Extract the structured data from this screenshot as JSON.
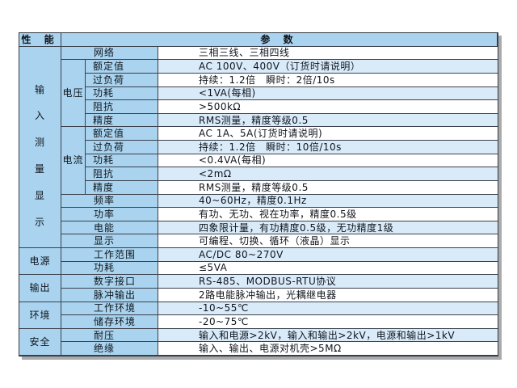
{
  "colors": {
    "header_cell_blue": "#a9d3ee",
    "row_alt_blue": "#d9eaf9",
    "row_plain": "#ffffff",
    "grid_line": "#3b424d",
    "table_shadow": "#a8aaac",
    "text": "#10151c"
  },
  "header": {
    "property_label": "性 能",
    "parameter_label": "参 数"
  },
  "groups": {
    "input": {
      "chars": [
        "输",
        "入",
        "测",
        "量",
        "显",
        "示"
      ]
    },
    "voltage": "电压",
    "current": "电流",
    "power": "电源",
    "output": "输出",
    "environment": "环境",
    "safety": "安全"
  },
  "rows": [
    {
      "param": "网络",
      "value": "三相三线、三相四线"
    },
    {
      "param": "额定值",
      "value": "AC 100V、400V（订货时请说明）"
    },
    {
      "param": "过负荷",
      "value": "持续：1.2倍　瞬时：2倍/10s"
    },
    {
      "param": "功耗",
      "value": "<1VA(每相)"
    },
    {
      "param": "阻抗",
      "value": ">500kΩ"
    },
    {
      "param": "精度",
      "value": "RMS测量，精度等级0.5"
    },
    {
      "param": "额定值",
      "value": "AC 1A、5A(订货时请说明)"
    },
    {
      "param": "过负荷",
      "value": "持续：1.2倍　瞬时：10倍/10s"
    },
    {
      "param": "功耗",
      "value": "<0.4VA(每相)"
    },
    {
      "param": "阻抗",
      "value": "<2mΩ"
    },
    {
      "param": "精度",
      "value": "RMS测量，精度等级0.5"
    },
    {
      "param": "频率",
      "value": "40~60Hz，精度0.1Hz"
    },
    {
      "param": "功率",
      "value": "有功、无功、视在功率，精度0.5级"
    },
    {
      "param": "电能",
      "value": "四象限计量，有功精度0.5级，无功精度1级"
    },
    {
      "param": "显示",
      "value": "可编程、切换、循环（液晶）显示"
    },
    {
      "param": "工作范围",
      "value": "AC/DC 80~270V"
    },
    {
      "param": "功耗",
      "value": "≤5VA"
    },
    {
      "param": "数字接口",
      "value": "RS-485、MODBUS-RTU协议"
    },
    {
      "param": "脉冲输出",
      "value": "2路电能脉冲输出，光耦继电器"
    },
    {
      "param": "工作环境",
      "value": "-10~55℃"
    },
    {
      "param": "储存环境",
      "value": "-20~75℃"
    },
    {
      "param": "耐压",
      "value": "输入和电源>2kV，输入和输出>2kV，电源和输出>1kV"
    },
    {
      "param": "绝缘",
      "value": "输入、输出、电源对机壳>5MΩ"
    }
  ]
}
